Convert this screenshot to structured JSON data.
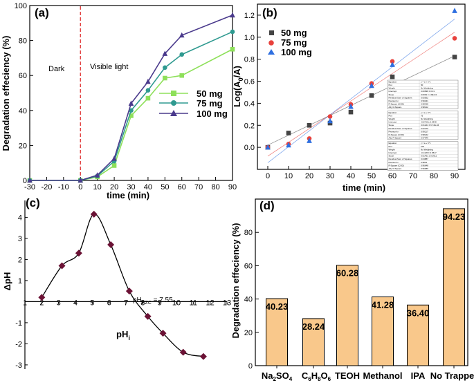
{
  "chart_data": [
    {
      "panel": "(a)",
      "type": "line",
      "xlabel": "time (min)",
      "ylabel": "Degradation effeciency (%)",
      "xlim": [
        -30,
        90
      ],
      "ylim": [
        0,
        100
      ],
      "xticks": [
        -30,
        -20,
        -10,
        0,
        10,
        20,
        30,
        40,
        50,
        60,
        70,
        80,
        90
      ],
      "xticklabels": [
        "-30",
        "-20",
        "-10",
        "0",
        "10",
        "20",
        "30",
        "40",
        "50",
        "60",
        "70",
        "80",
        "90"
      ],
      "yticks": [
        0,
        20,
        40,
        60,
        80,
        100
      ],
      "annotations": [
        "Dark",
        "Visible light"
      ],
      "divider_x": 0,
      "legend_placement": "right",
      "x": [
        -30,
        0,
        10,
        20,
        30,
        40,
        50,
        60,
        90
      ],
      "series": [
        {
          "name": "50 mg",
          "color": "#8ee05a",
          "marker": "square",
          "values": [
            0,
            0,
            2,
            8.5,
            37,
            47,
            58.5,
            60,
            75
          ]
        },
        {
          "name": "75 mg",
          "color": "#2f9a90",
          "marker": "circle",
          "values": [
            0,
            0,
            2.5,
            11,
            40,
            51.5,
            64.5,
            72,
            85
          ]
        },
        {
          "name": "100 mg",
          "color": "#4a3a8c",
          "marker": "triangle",
          "values": [
            0,
            0,
            3,
            12.5,
            44,
            56.5,
            72.5,
            83,
            94.5
          ]
        }
      ]
    },
    {
      "panel": "(b)",
      "type": "scatter",
      "xlabel": "time (min)",
      "ylabel": "Log(A0/A)",
      "ylabel_main": "Log(A",
      "ylabel_sub": "0",
      "ylabel_tail": "/A)",
      "xlim": [
        -5,
        95
      ],
      "ylim": [
        -0.2,
        1.3
      ],
      "xticks": [
        0,
        10,
        20,
        30,
        40,
        50,
        60,
        70,
        80,
        90
      ],
      "xticklabels": [
        "0",
        "10",
        "20",
        "30",
        "40",
        "50",
        "60",
        "70",
        "80",
        "90"
      ],
      "yticks": [
        0.0,
        0.2,
        0.4,
        0.6,
        0.8,
        1.0,
        1.2
      ],
      "yticklabels": [
        "0.0",
        "0.2",
        "0.4",
        "0.6",
        "0.8",
        "1.0",
        "1.2"
      ],
      "legend_placement": "top-left",
      "x": [
        0,
        10,
        20,
        30,
        40,
        50,
        60,
        90
      ],
      "series": [
        {
          "name": "50 mg",
          "color": "#444444",
          "marker": "square",
          "values": [
            0.0,
            0.13,
            0.2,
            0.22,
            0.32,
            0.47,
            0.64,
            0.82
          ],
          "fit": [
            0.02,
            0.009
          ]
        },
        {
          "name": "75 mg",
          "color": "#e8413c",
          "marker": "circle",
          "values": [
            0.0,
            0.03,
            0.08,
            0.28,
            0.39,
            0.58,
            0.78,
            0.99
          ],
          "fit": [
            -0.08,
            0.0125
          ]
        },
        {
          "name": "100 mg",
          "color": "#2e6fe0",
          "marker": "triangle",
          "values": [
            0.0,
            0.02,
            0.06,
            0.24,
            0.37,
            0.56,
            0.75,
            1.24
          ],
          "fit": [
            -0.14,
            0.0145
          ]
        }
      ],
      "fit_tables": [
        {
          "rows": [
            [
              "Equation",
              "y = a + b*x"
            ],
            [
              "Plot",
              "50"
            ],
            [
              "Weight",
              "No Weighting"
            ],
            [
              "Intercept",
              "0.00838 ± 0.01"
            ],
            [
              "Slope",
              "0.0091 ± 4.9E-04"
            ],
            [
              "Residual Sum of Squares",
              "0.00562"
            ],
            [
              "Pearson's r",
              "0.99231"
            ],
            [
              "R-Square (COD)",
              "0.98468"
            ],
            [
              "Adj. R-Square",
              "0.98212"
            ]
          ]
        },
        {
          "rows": [
            [
              "Equation",
              "y = a + b*x"
            ],
            [
              "Plot",
              "75"
            ],
            [
              "Weight",
              "No Weighting"
            ],
            [
              "Intercept",
              "-0.0722 ± 0.0348"
            ],
            [
              "Slope",
              "0.01224 ± 6.72E-04"
            ],
            [
              "Residual Sum of Squares",
              "0.02270"
            ],
            [
              "Pearson's r",
              "0.99117"
            ],
            [
              "R-Square (COD)",
              "0.98242"
            ],
            [
              "Adj. R-Square",
              "0.97949"
            ]
          ]
        },
        {
          "rows": [
            [
              "Equation",
              "y = a + b*x"
            ],
            [
              "Plot",
              "100"
            ],
            [
              "Weight",
              "No Weighting"
            ],
            [
              "Intercept",
              "-0.1426 ± 0.0517"
            ],
            [
              "Slope",
              "0.01451 ± 0.0011"
            ],
            [
              "Residual Sum of Squares",
              "0.04887"
            ],
            [
              "Pearson's r",
              "0.9831"
            ],
            [
              "R-Square (COD)",
              "0.96648"
            ],
            [
              "Adj. R-Square",
              "0.96089"
            ]
          ]
        }
      ]
    },
    {
      "panel": "(c)",
      "type": "line",
      "xlabel_main": "pH",
      "xlabel_sub": "i",
      "ylabel": "ΔpH",
      "xlim": [
        1,
        13
      ],
      "ylim": [
        -3.2,
        4.8
      ],
      "xticks": [
        1,
        2,
        3,
        4,
        5,
        6,
        7,
        8,
        9,
        10,
        11,
        12,
        13
      ],
      "xticklabels": [
        "1",
        "2",
        "3",
        "4",
        "5",
        "6",
        "7",
        "8",
        "9",
        "10",
        "11",
        "12",
        "13"
      ],
      "yticks": [
        -3,
        -2,
        -1,
        1,
        2,
        3,
        4
      ],
      "yticklabels": [
        "-3",
        "-2",
        "-1",
        "1",
        "2",
        "3",
        "4"
      ],
      "annotation_main": "pH",
      "annotation_sub": "PZC",
      "annotation_tail": " = 7.55",
      "marker_color": "#6b1235",
      "x": [
        2,
        3.2,
        4.2,
        5.1,
        6.1,
        7.2,
        8.3,
        9.2,
        10.4,
        11.6
      ],
      "values": [
        0.2,
        1.7,
        2.3,
        4.15,
        2.7,
        0.5,
        -0.7,
        -1.5,
        -2.4,
        -2.6
      ]
    },
    {
      "panel": "(d)",
      "type": "bar",
      "ylabel": "Degradation effeciency (%)",
      "ylim": [
        0,
        100
      ],
      "yticks": [
        0,
        20,
        40,
        60,
        80
      ],
      "bar_color": "#f9c88b",
      "categories": [
        "Na2SO4",
        "C6H8O6",
        "TEOH",
        "Methanol",
        "IPA",
        "No Trapper"
      ],
      "values": [
        40.23,
        28.24,
        60.28,
        41.28,
        36.4,
        94.23
      ],
      "value_labels": [
        "40.23",
        "28.24",
        "60.28",
        "41.28",
        "36.40",
        "94.23"
      ]
    }
  ]
}
